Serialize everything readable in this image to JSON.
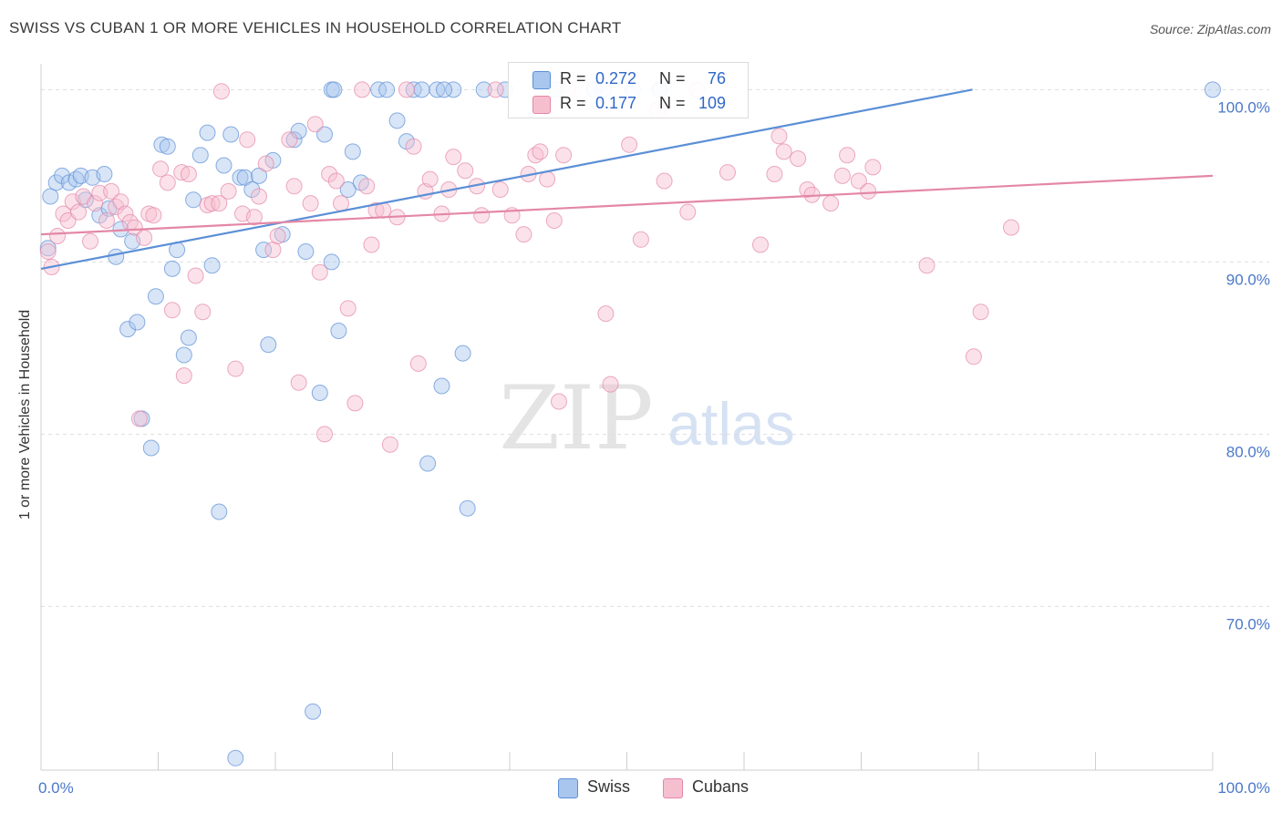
{
  "title": "SWISS VS CUBAN 1 OR MORE VEHICLES IN HOUSEHOLD CORRELATION CHART",
  "source": "Source: ZipAtlas.com",
  "watermark": {
    "zip": "ZIP",
    "atlas": "atlas"
  },
  "legend": {
    "rows": [
      {
        "r_label": "R =",
        "r_value": "0.272",
        "n_label": "N =",
        "n_value": "76",
        "color": "#a9c6ee",
        "border": "#5b8fd6"
      },
      {
        "r_label": "R =",
        "r_value": "0.177",
        "n_label": "N =",
        "n_value": "109",
        "color": "#f6bfd0",
        "border": "#e487a6"
      }
    ]
  },
  "bottom_legend": [
    {
      "label": "Swiss",
      "color": "#a9c6ee",
      "border": "#5b8fd6"
    },
    {
      "label": "Cubans",
      "color": "#f6bfd0",
      "border": "#e487a6"
    }
  ],
  "chart_data": {
    "type": "scatter",
    "title": "SWISS VS CUBAN 1 OR MORE VEHICLES IN HOUSEHOLD CORRELATION CHART",
    "xlabel": "",
    "ylabel": "1 or more Vehicles in Household",
    "xlim": [
      0,
      100
    ],
    "ylim": [
      60.5,
      101.5
    ],
    "x_tick_labels": [
      "0.0%",
      "100.0%"
    ],
    "y_ticks": [
      70,
      80,
      90,
      100
    ],
    "y_tick_labels": [
      "70.0%",
      "80.0%",
      "90.0%",
      "100.0%"
    ],
    "grid": "horizontal dashed",
    "legend_position": "top-center",
    "series": [
      {
        "name": "Swiss",
        "color": "#5b8fd6",
        "fill": "#a9c6ee",
        "trend": {
          "x": [
            0,
            79.5
          ],
          "y": [
            89.6,
            100
          ]
        },
        "points": [
          [
            0.6,
            90.8
          ],
          [
            0.8,
            93.8
          ],
          [
            1.3,
            94.6
          ],
          [
            1.8,
            95.0
          ],
          [
            2.4,
            94.6
          ],
          [
            3.0,
            94.8
          ],
          [
            3.4,
            95.0
          ],
          [
            3.8,
            93.6
          ],
          [
            4.4,
            94.9
          ],
          [
            5.0,
            92.7
          ],
          [
            5.4,
            95.1
          ],
          [
            5.8,
            93.1
          ],
          [
            6.4,
            90.3
          ],
          [
            6.8,
            91.9
          ],
          [
            7.4,
            86.1
          ],
          [
            7.8,
            91.2
          ],
          [
            8.2,
            86.5
          ],
          [
            8.6,
            80.9
          ],
          [
            9.4,
            79.2
          ],
          [
            9.8,
            88.0
          ],
          [
            10.3,
            96.8
          ],
          [
            10.8,
            96.7
          ],
          [
            11.2,
            89.6
          ],
          [
            11.6,
            90.7
          ],
          [
            12.2,
            84.6
          ],
          [
            12.6,
            85.6
          ],
          [
            13.0,
            93.6
          ],
          [
            13.6,
            96.2
          ],
          [
            14.2,
            97.5
          ],
          [
            14.6,
            89.8
          ],
          [
            15.2,
            75.5
          ],
          [
            15.6,
            95.6
          ],
          [
            16.2,
            97.4
          ],
          [
            16.6,
            61.2
          ],
          [
            17.0,
            94.9
          ],
          [
            17.4,
            94.9
          ],
          [
            18.0,
            94.2
          ],
          [
            18.6,
            95.0
          ],
          [
            19.0,
            90.7
          ],
          [
            19.4,
            85.2
          ],
          [
            19.8,
            95.9
          ],
          [
            20.6,
            91.6
          ],
          [
            21.6,
            97.1
          ],
          [
            22.0,
            97.6
          ],
          [
            22.6,
            90.6
          ],
          [
            23.2,
            63.9
          ],
          [
            23.8,
            82.4
          ],
          [
            24.2,
            97.4
          ],
          [
            24.8,
            90.0
          ],
          [
            25.4,
            86.0
          ],
          [
            26.2,
            94.2
          ],
          [
            26.6,
            96.4
          ],
          [
            27.3,
            94.6
          ],
          [
            28.8,
            100.0
          ],
          [
            30.4,
            98.2
          ],
          [
            31.2,
            97.0
          ],
          [
            31.8,
            100.0
          ],
          [
            33.0,
            78.3
          ],
          [
            34.2,
            82.8
          ],
          [
            35.2,
            100.0
          ],
          [
            36.0,
            84.7
          ],
          [
            36.4,
            75.7
          ],
          [
            24.8,
            100.0
          ],
          [
            25.0,
            100.0
          ],
          [
            29.5,
            100.0
          ],
          [
            32.5,
            100.0
          ],
          [
            33.8,
            100.0
          ],
          [
            34.4,
            100.0
          ],
          [
            37.8,
            100.0
          ],
          [
            39.6,
            100.0
          ],
          [
            44.0,
            100.0
          ],
          [
            47.2,
            100.0
          ],
          [
            48.0,
            100.0
          ],
          [
            50.5,
            100.0
          ],
          [
            52.8,
            100.0
          ],
          [
            100,
            100.0
          ]
        ]
      },
      {
        "name": "Cubans",
        "color": "#e487a6",
        "fill": "#f6bfd0",
        "trend": {
          "x": [
            0,
            100
          ],
          "y": [
            91.6,
            95.0
          ]
        },
        "points": [
          [
            0.6,
            90.6
          ],
          [
            0.9,
            89.7
          ],
          [
            1.4,
            91.5
          ],
          [
            1.9,
            92.8
          ],
          [
            2.3,
            92.4
          ],
          [
            2.7,
            93.5
          ],
          [
            3.2,
            92.9
          ],
          [
            3.6,
            93.8
          ],
          [
            4.2,
            91.2
          ],
          [
            4.6,
            93.4
          ],
          [
            5.0,
            94.0
          ],
          [
            5.6,
            92.4
          ],
          [
            6.0,
            94.1
          ],
          [
            6.4,
            93.2
          ],
          [
            6.8,
            93.5
          ],
          [
            7.2,
            92.8
          ],
          [
            7.6,
            92.3
          ],
          [
            8.0,
            92.0
          ],
          [
            8.4,
            80.9
          ],
          [
            8.8,
            91.4
          ],
          [
            9.2,
            92.8
          ],
          [
            9.6,
            92.7
          ],
          [
            10.2,
            95.4
          ],
          [
            10.8,
            94.6
          ],
          [
            11.2,
            87.2
          ],
          [
            12.0,
            95.2
          ],
          [
            12.2,
            83.4
          ],
          [
            12.6,
            95.1
          ],
          [
            13.2,
            89.2
          ],
          [
            13.8,
            87.1
          ],
          [
            14.2,
            93.3
          ],
          [
            14.6,
            93.4
          ],
          [
            15.2,
            93.4
          ],
          [
            15.4,
            99.9
          ],
          [
            16.0,
            94.1
          ],
          [
            16.6,
            83.8
          ],
          [
            17.2,
            92.8
          ],
          [
            17.6,
            97.1
          ],
          [
            18.2,
            92.6
          ],
          [
            18.6,
            93.8
          ],
          [
            19.2,
            95.7
          ],
          [
            19.8,
            90.7
          ],
          [
            20.2,
            91.5
          ],
          [
            21.2,
            97.1
          ],
          [
            21.6,
            94.4
          ],
          [
            22.0,
            83.0
          ],
          [
            23.0,
            93.4
          ],
          [
            23.4,
            98.0
          ],
          [
            23.8,
            89.4
          ],
          [
            24.2,
            80.0
          ],
          [
            24.6,
            95.1
          ],
          [
            25.2,
            94.7
          ],
          [
            25.6,
            93.4
          ],
          [
            26.2,
            87.3
          ],
          [
            26.8,
            81.8
          ],
          [
            27.4,
            100.0
          ],
          [
            27.8,
            94.4
          ],
          [
            28.2,
            91.0
          ],
          [
            28.6,
            93.0
          ],
          [
            29.2,
            93.0
          ],
          [
            29.8,
            79.4
          ],
          [
            30.4,
            92.6
          ],
          [
            31.2,
            100.0
          ],
          [
            31.8,
            96.7
          ],
          [
            32.2,
            84.1
          ],
          [
            32.8,
            94.1
          ],
          [
            33.2,
            94.8
          ],
          [
            34.2,
            92.8
          ],
          [
            34.8,
            94.2
          ],
          [
            35.2,
            96.1
          ],
          [
            36.2,
            95.3
          ],
          [
            37.2,
            94.4
          ],
          [
            37.6,
            92.7
          ],
          [
            38.8,
            100.0
          ],
          [
            39.2,
            94.2
          ],
          [
            40.2,
            92.7
          ],
          [
            41.2,
            91.6
          ],
          [
            41.6,
            95.1
          ],
          [
            42.2,
            96.2
          ],
          [
            42.6,
            96.4
          ],
          [
            43.2,
            94.8
          ],
          [
            43.8,
            92.4
          ],
          [
            44.2,
            81.9
          ],
          [
            44.6,
            96.2
          ],
          [
            45.0,
            100.0
          ],
          [
            48.2,
            87.0
          ],
          [
            48.6,
            82.9
          ],
          [
            50.2,
            96.8
          ],
          [
            51.2,
            91.3
          ],
          [
            52.6,
            98.8
          ],
          [
            53.2,
            94.7
          ],
          [
            55.2,
            92.9
          ],
          [
            56.0,
            100.0
          ],
          [
            58.6,
            95.2
          ],
          [
            61.4,
            91.0
          ],
          [
            62.6,
            95.1
          ],
          [
            63.0,
            97.3
          ],
          [
            63.4,
            96.4
          ],
          [
            64.6,
            96.0
          ],
          [
            65.4,
            94.2
          ],
          [
            65.8,
            93.9
          ],
          [
            67.4,
            93.4
          ],
          [
            68.4,
            95.0
          ],
          [
            68.8,
            96.2
          ],
          [
            69.8,
            94.7
          ],
          [
            70.6,
            94.1
          ],
          [
            71.0,
            95.5
          ],
          [
            75.6,
            89.8
          ],
          [
            79.6,
            84.5
          ],
          [
            80.2,
            87.1
          ],
          [
            82.8,
            92.0
          ]
        ]
      }
    ]
  }
}
